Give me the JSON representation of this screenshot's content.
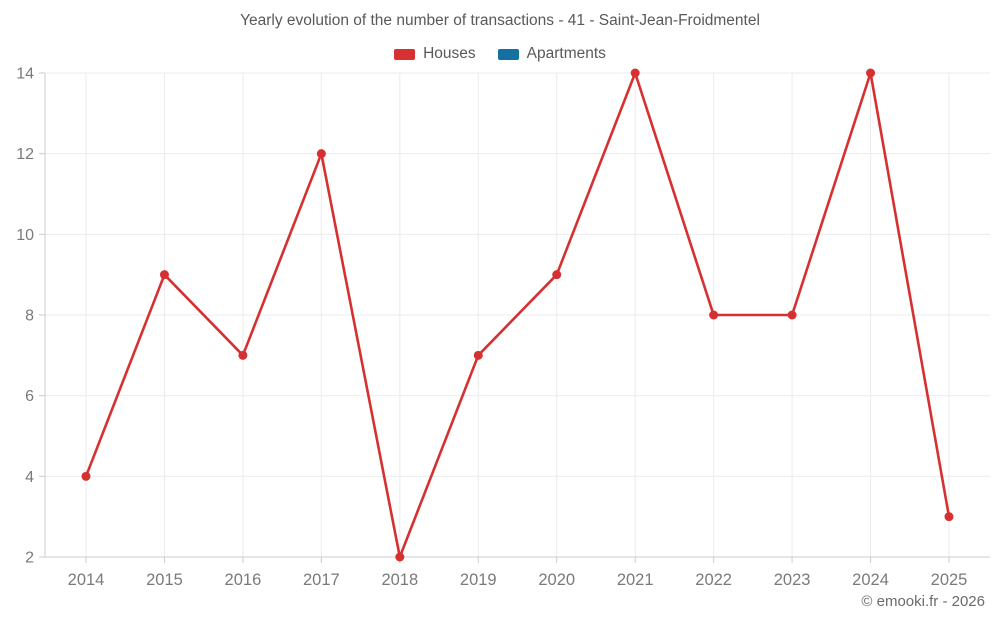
{
  "chart": {
    "title": "Yearly evolution of the number of transactions - 41 - Saint-Jean-Froidmentel",
    "footer": "© emooki.fr - 2026",
    "legend": [
      {
        "label": "Houses",
        "color": "#d63031"
      },
      {
        "label": "Apartments",
        "color": "#1470a1"
      }
    ]
  },
  "chart_data": {
    "type": "line",
    "title": "Yearly evolution of the number of transactions - 41 - Saint-Jean-Froidmentel",
    "categories": [
      "2014",
      "2015",
      "2016",
      "2017",
      "2018",
      "2019",
      "2020",
      "2021",
      "2022",
      "2023",
      "2024",
      "2025"
    ],
    "series": [
      {
        "name": "Houses",
        "color": "#d63031",
        "values": [
          4,
          9,
          7,
          12,
          2,
          7,
          9,
          14,
          8,
          8,
          14,
          3
        ]
      },
      {
        "name": "Apartments",
        "color": "#1470a1",
        "values": []
      }
    ],
    "xlabel": "",
    "ylabel": "",
    "ylim": [
      2,
      14
    ],
    "yticks": [
      2,
      4,
      6,
      8,
      10,
      12,
      14
    ],
    "grid": true,
    "legend_position": "top",
    "colors": {
      "gridline": "#ebebeb",
      "axis_line": "#cccccc",
      "tick_label": "#7a7a7a"
    }
  }
}
